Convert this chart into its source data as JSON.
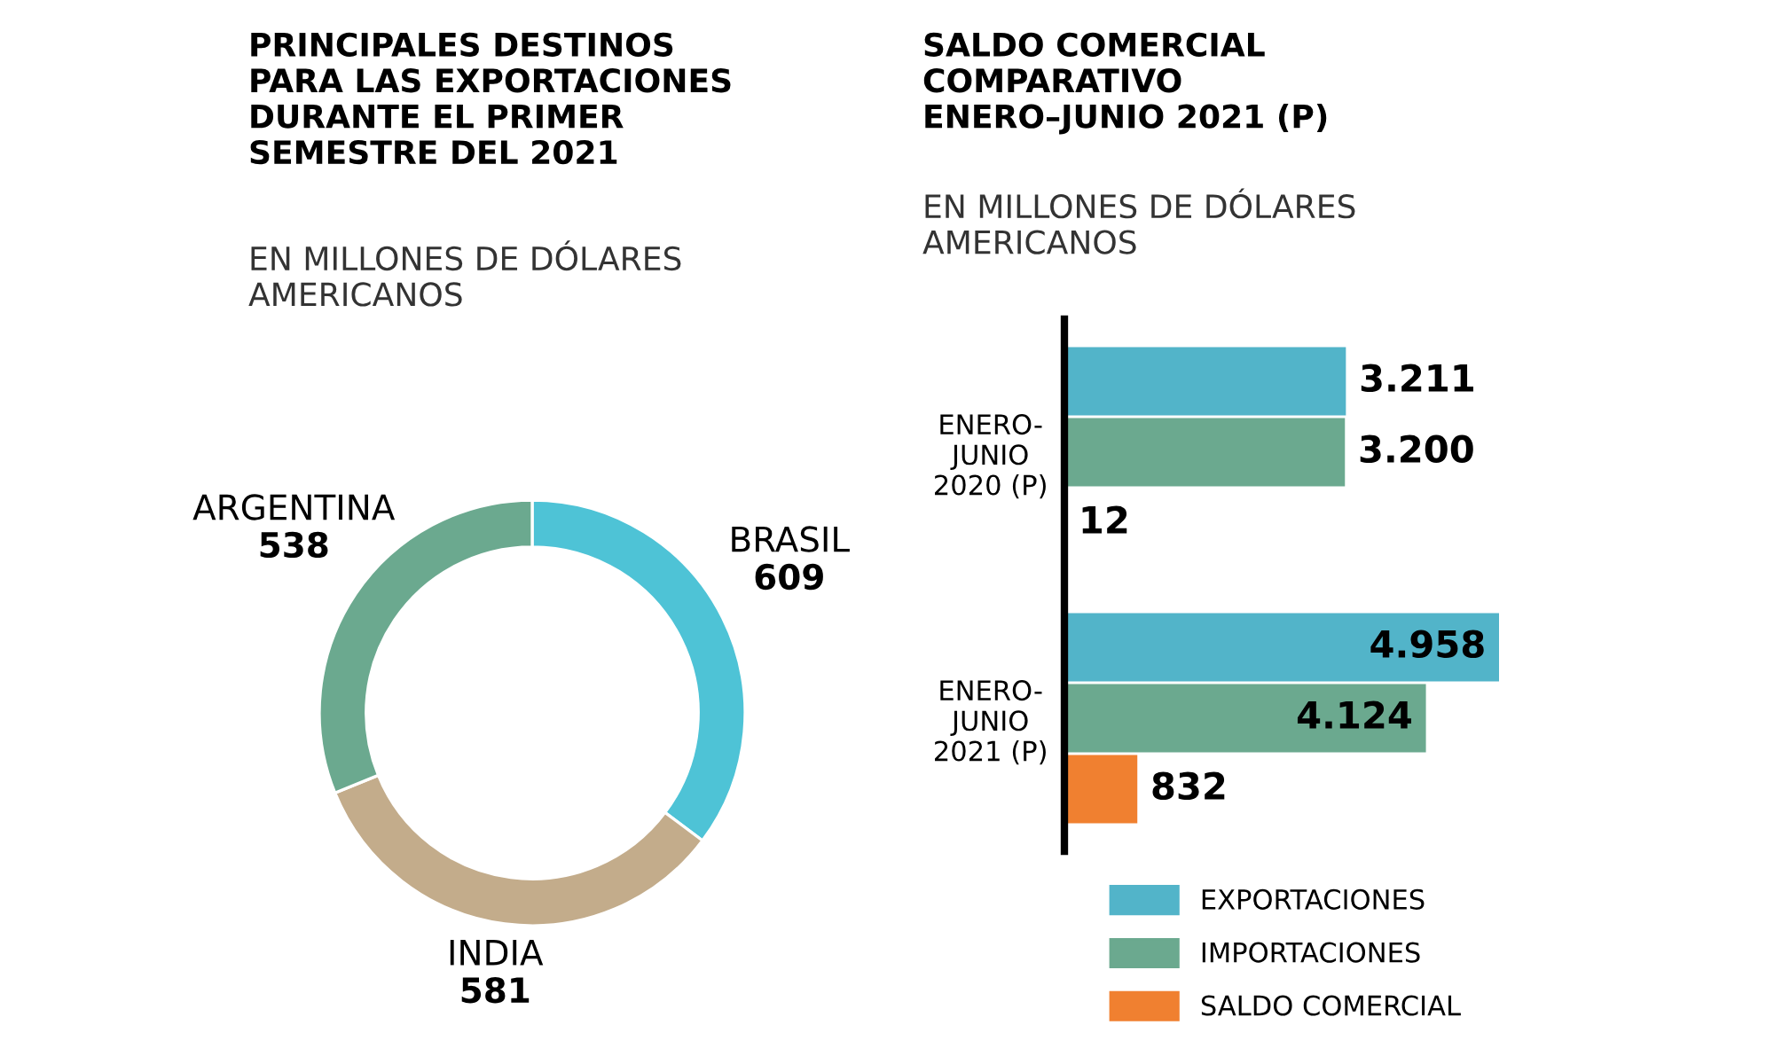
{
  "chart_data": [
    {
      "type": "donut",
      "title": "PRINCIPALES DESTINOS\nPARA LAS EXPORTACIONES\nDURANTE EL PRIMER\nSEMESTRE DEL 2021",
      "subtitle": "EN MILLONES DE DÓLARES\nAMERICANOS",
      "categories": [
        "BRASIL",
        "INDIA",
        "ARGENTINA"
      ],
      "values": [
        609,
        581,
        538
      ],
      "colors": [
        "#4ec3d6",
        "#c3ac8b",
        "#6ba98f"
      ],
      "data_labels": true
    },
    {
      "type": "bar",
      "orientation": "horizontal",
      "title": "SALDO COMERCIAL\nCOMPARATIVO\nENERO–JUNIO 2021 (P)",
      "subtitle": "EN MILLONES DE DÓLARES\nAMERICANOS",
      "categories": [
        "ENERO-\nJUNIO\n2020 (P)",
        "ENERO-\nJUNIO\n2021 (P)"
      ],
      "xlim": [
        0,
        4958
      ],
      "tick_labels": "y",
      "legend": "bottom",
      "series": [
        {
          "name": "EXPORTACIONES",
          "color": "#52b4c9",
          "values": [
            3211,
            4958
          ],
          "value_labels": [
            "3.211",
            "4.958"
          ]
        },
        {
          "name": "IMPORTACIONES",
          "color": "#6ba98f",
          "values": [
            3200,
            4124
          ],
          "value_labels": [
            "3.200",
            "4.124"
          ]
        },
        {
          "name": "SALDO COMERCIAL",
          "color": "#f08030",
          "values": [
            12,
            832
          ],
          "value_labels": [
            "12",
            "832"
          ]
        }
      ]
    }
  ]
}
